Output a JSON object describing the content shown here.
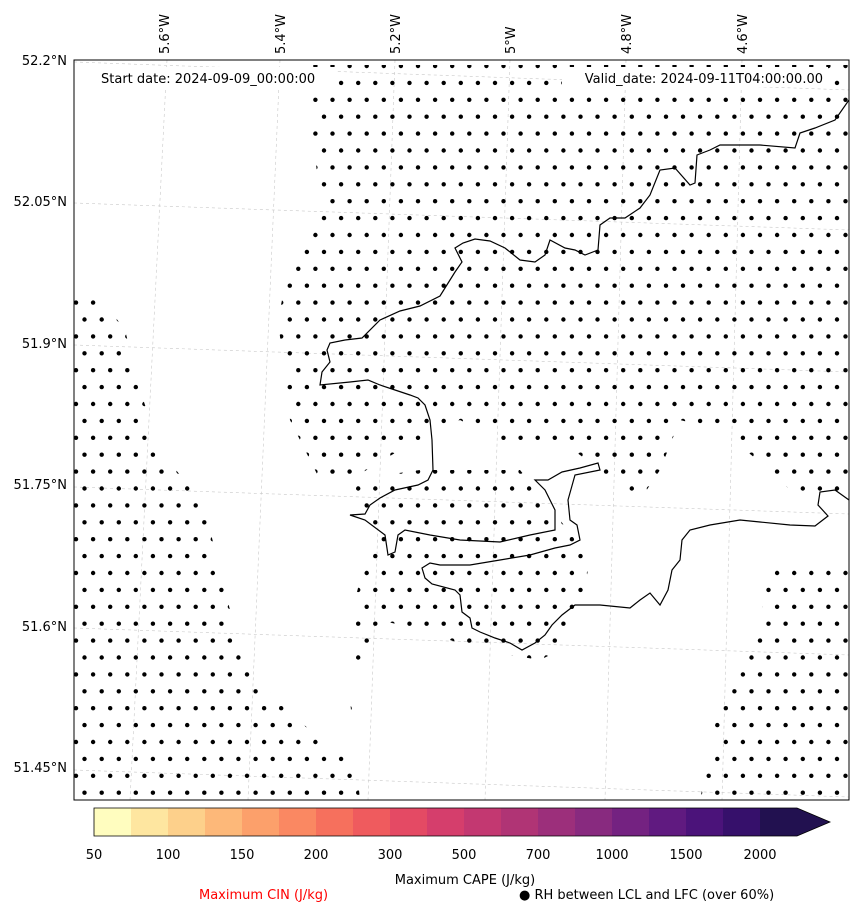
{
  "header": {
    "start_date": "Start date: 2024-09-09_00:00:00",
    "valid_date": "Valid_date: 2024-09-11T04:00:00.00"
  },
  "axes": {
    "lon_labels": [
      "5.6°W",
      "5.4°W",
      "5.2°W",
      "5°W",
      "4.8°W",
      "4.6°W"
    ],
    "lat_labels": [
      "52.2°N",
      "52.05°N",
      "51.9°N",
      "51.75°N",
      "51.6°N",
      "51.45°N"
    ]
  },
  "colorbar": {
    "title": "Maximum CAPE (J/kg)",
    "levels": [
      "50",
      "100",
      "150",
      "200",
      "300",
      "500",
      "700",
      "1000",
      "1500",
      "2000"
    ],
    "colors": [
      "#fffdbf",
      "#fee6a0",
      "#fdd08b",
      "#fdb879",
      "#fca06b",
      "#fa8862",
      "#f6705d",
      "#ef5b5e",
      "#e44a64",
      "#d53e6c",
      "#c33871",
      "#b03475",
      "#9c2f7b",
      "#882a7f",
      "#742281",
      "#601a80",
      "#4b137a",
      "#36106b",
      "#221150"
    ]
  },
  "legend": {
    "cin_label": "Maximum CIN (J/kg)",
    "cin_color": "#ff0000",
    "rh_label": "● RH between LCL and LFC (over 60%)"
  }
}
